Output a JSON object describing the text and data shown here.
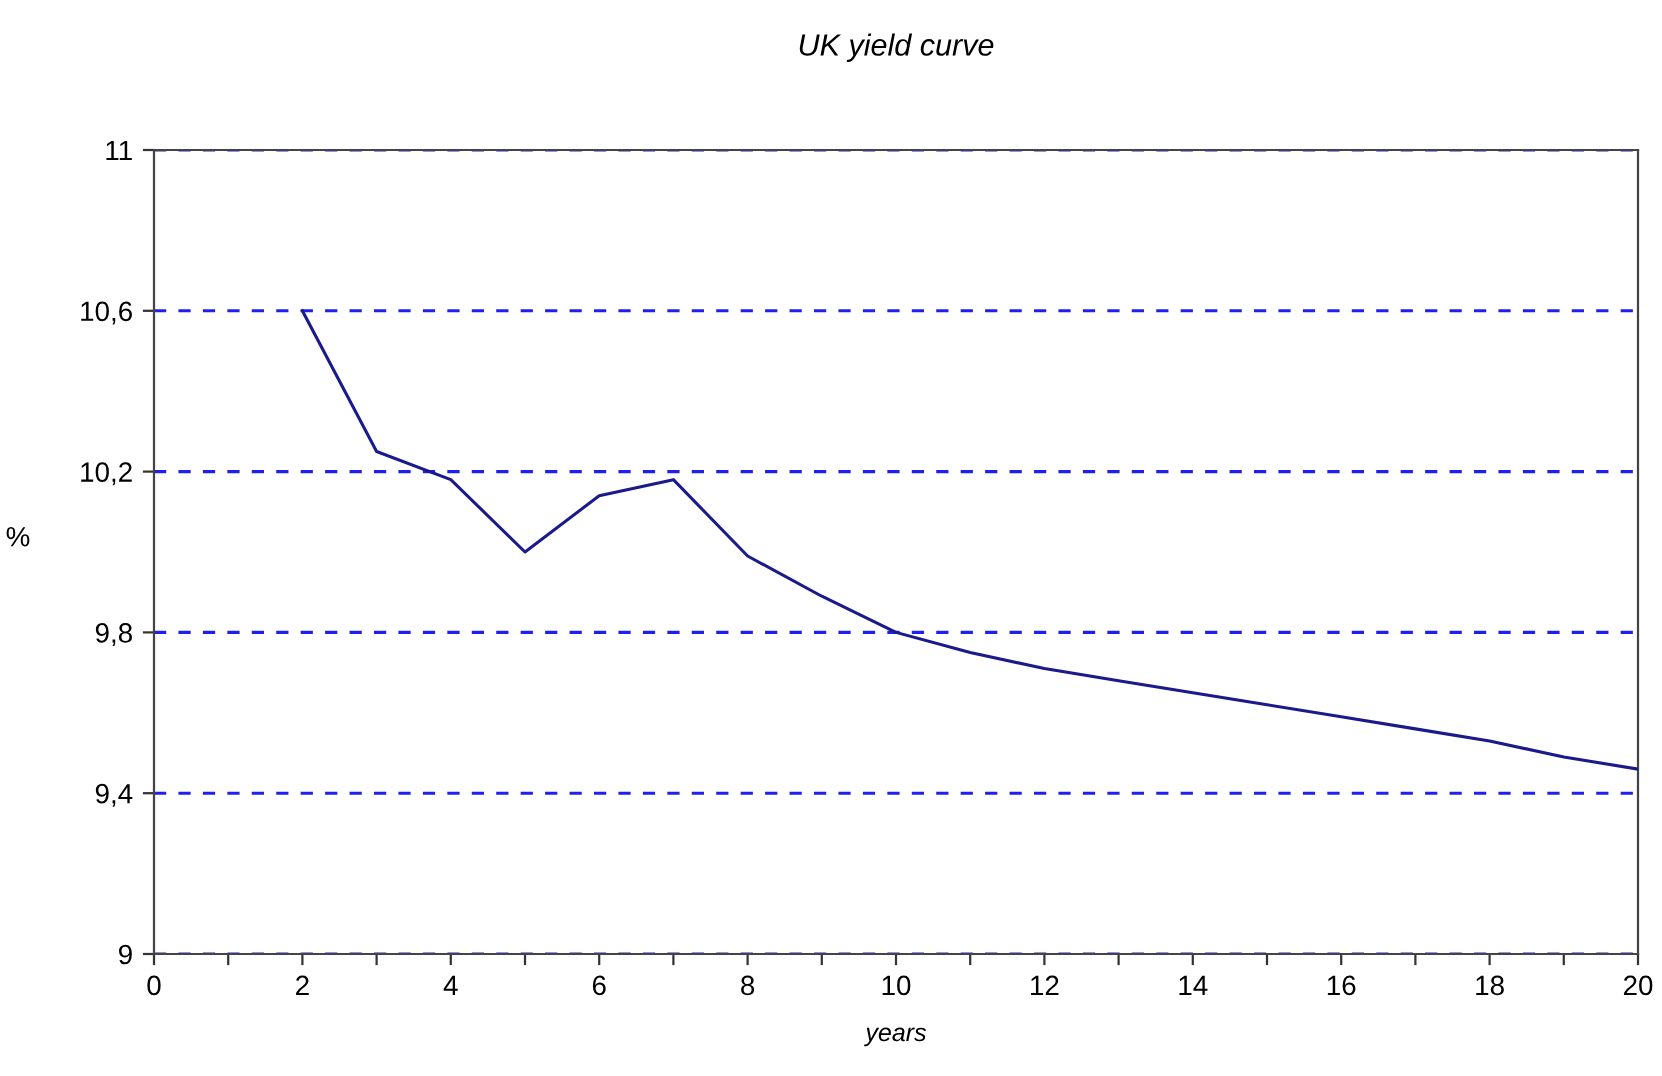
{
  "chart_data": {
    "type": "line",
    "title": "UK yield curve",
    "xlabel": "years",
    "ylabel": "%",
    "x": [
      2,
      3,
      4,
      5,
      6,
      7,
      8,
      9,
      10,
      11,
      12,
      13,
      14,
      15,
      16,
      17,
      18,
      19,
      20
    ],
    "series": [
      {
        "color": "#1a1a8c",
        "values": [
          10.6,
          10.25,
          10.18,
          10.0,
          10.14,
          10.18,
          9.99,
          9.89,
          9.8,
          9.75,
          9.71,
          9.68,
          9.65,
          9.62,
          9.59,
          9.56,
          9.53,
          9.49,
          9.46
        ]
      }
    ],
    "xlim": [
      0,
      20
    ],
    "xticks": [
      0,
      {
        "value": 1,
        "label": null
      },
      2,
      {
        "value": 3,
        "label": null
      },
      4,
      {
        "value": 5,
        "label": null
      },
      6,
      {
        "value": 7,
        "label": null
      },
      8,
      {
        "value": 9,
        "label": null
      },
      10,
      {
        "value": 11,
        "label": null
      },
      12,
      {
        "value": 13,
        "label": null
      },
      14,
      {
        "value": 15,
        "label": null
      },
      16,
      {
        "value": 17,
        "label": null
      },
      18,
      {
        "value": 19,
        "label": null
      },
      20
    ],
    "ylim": [
      9,
      11
    ],
    "yticks": [
      9,
      {
        "value": 9.4,
        "label": "9,4"
      },
      {
        "value": 9.8,
        "label": "9,8"
      },
      {
        "value": 10.2,
        "label": "10,2"
      },
      {
        "value": 10.6,
        "label": "10,6"
      },
      11
    ],
    "grid": "y",
    "marker": "none",
    "line_style": "solid",
    "legend": false
  }
}
